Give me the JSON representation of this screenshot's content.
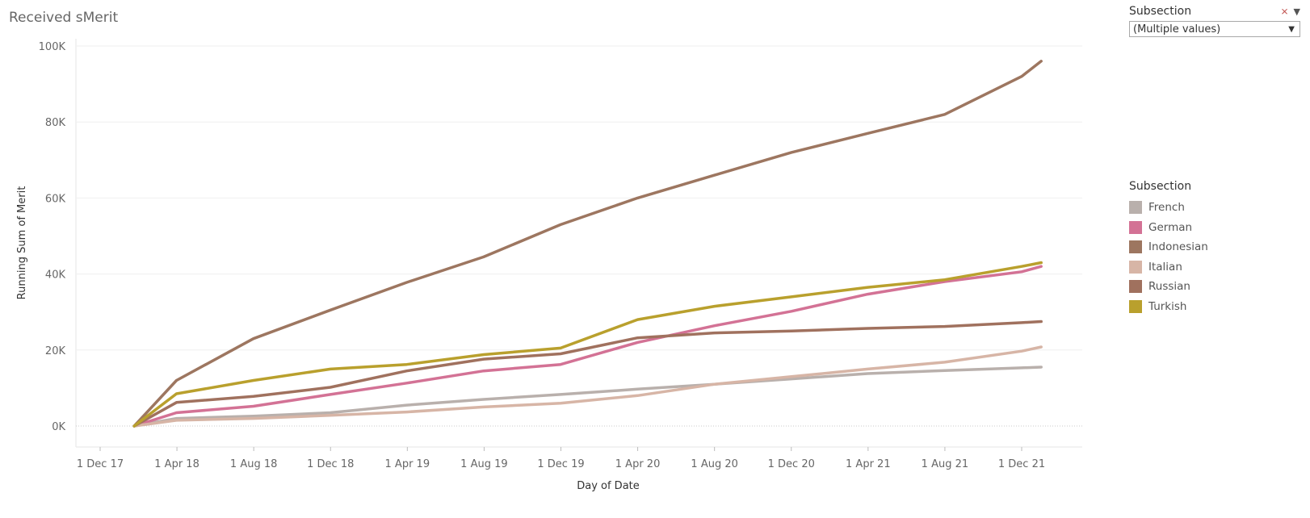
{
  "title": "Received sMerit",
  "filter": {
    "label": "Subsection",
    "value": "(Multiple values)"
  },
  "legend": {
    "title": "Subsection"
  },
  "chart_data": {
    "type": "line",
    "xlabel": "Day of Date",
    "ylabel": "Running Sum of Merit",
    "x_ticks": [
      "1 Dec 17",
      "1 Apr 18",
      "1 Aug 18",
      "1 Dec 18",
      "1 Apr 19",
      "1 Aug 19",
      "1 Dec 19",
      "1 Apr 20",
      "1 Aug 20",
      "1 Dec 20",
      "1 Apr 21",
      "1 Aug 21",
      "1 Dec 21"
    ],
    "y_ticks": [
      "0K",
      "20K",
      "40K",
      "60K",
      "80K",
      "100K"
    ],
    "ylim": [
      0,
      100000
    ],
    "x": [
      "2018-01-24",
      "2018-04-01",
      "2018-08-01",
      "2018-12-01",
      "2019-04-01",
      "2019-08-01",
      "2019-12-01",
      "2020-04-01",
      "2020-08-01",
      "2020-12-01",
      "2021-04-01",
      "2021-08-01",
      "2021-12-01",
      "2022-01-01"
    ],
    "series": [
      {
        "name": "French",
        "color": "#b9b0ac",
        "values": [
          0,
          2000,
          2600,
          3500,
          5500,
          7000,
          8300,
          9700,
          11000,
          12400,
          13800,
          14600,
          15300,
          15500
        ]
      },
      {
        "name": "German",
        "color": "#d37295",
        "values": [
          0,
          3500,
          5200,
          8300,
          11300,
          14500,
          16200,
          22000,
          26400,
          30200,
          34700,
          38000,
          40600,
          42000
        ]
      },
      {
        "name": "Indonesian",
        "color": "#9d7660",
        "values": [
          0,
          12000,
          23000,
          30500,
          37800,
          44500,
          53000,
          60000,
          66000,
          72000,
          77000,
          82000,
          92000,
          96000
        ]
      },
      {
        "name": "Italian",
        "color": "#d7b5a6",
        "values": [
          0,
          1500,
          2000,
          2800,
          3700,
          5000,
          6000,
          8000,
          11000,
          13000,
          15000,
          16800,
          19700,
          20800
        ]
      },
      {
        "name": "Russian",
        "color": "#a0715e",
        "values": [
          0,
          6200,
          7800,
          10200,
          14500,
          17600,
          19000,
          23200,
          24500,
          25000,
          25700,
          26200,
          27200,
          27500
        ]
      },
      {
        "name": "Turkish",
        "color": "#b9a02d",
        "values": [
          0,
          8500,
          12000,
          15000,
          16200,
          18800,
          20500,
          28000,
          31500,
          34000,
          36500,
          38500,
          42000,
          43000
        ]
      }
    ]
  }
}
